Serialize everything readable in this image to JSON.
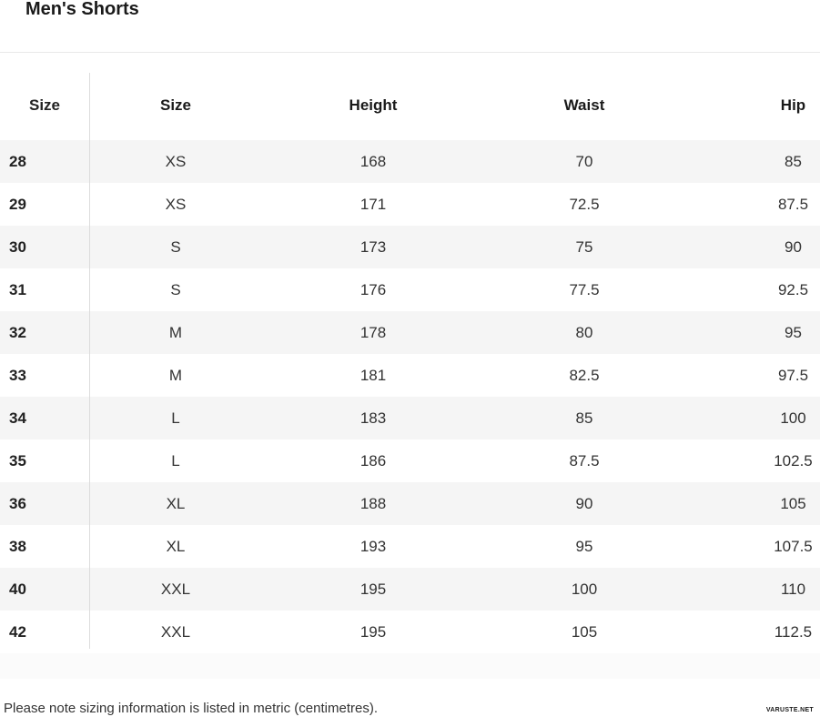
{
  "title": "Men's Shorts",
  "table": {
    "headers": [
      "Size",
      "Size",
      "Height",
      "Waist",
      "Hip"
    ],
    "rows": [
      [
        "28",
        "XS",
        "168",
        "70",
        "85"
      ],
      [
        "29",
        "XS",
        "171",
        "72.5",
        "87.5"
      ],
      [
        "30",
        "S",
        "173",
        "75",
        "90"
      ],
      [
        "31",
        "S",
        "176",
        "77.5",
        "92.5"
      ],
      [
        "32",
        "M",
        "178",
        "80",
        "95"
      ],
      [
        "33",
        "M",
        "181",
        "82.5",
        "97.5"
      ],
      [
        "34",
        "L",
        "183",
        "85",
        "100"
      ],
      [
        "35",
        "L",
        "186",
        "87.5",
        "102.5"
      ],
      [
        "36",
        "XL",
        "188",
        "90",
        "105"
      ],
      [
        "38",
        "XL",
        "193",
        "95",
        "107.5"
      ],
      [
        "40",
        "XXL",
        "195",
        "100",
        "110"
      ],
      [
        "42",
        "XXL",
        "195",
        "105",
        "112.5"
      ]
    ]
  },
  "footer": {
    "note": "Please note sizing information is listed in metric (centimetres).",
    "watermark": "VARUSTE.NET"
  },
  "colors": {
    "stripe": "#f5f5f5",
    "divider": "#dcdcdc",
    "top_rule": "#e8e8e8",
    "heading_text": "#1a1a1a",
    "body_text": "#333333",
    "footer_band": "#fbfbfb"
  }
}
